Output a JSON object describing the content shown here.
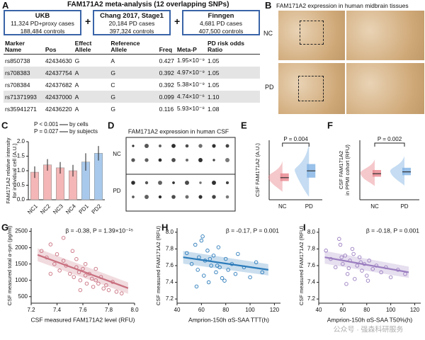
{
  "panel_labels": [
    "A",
    "B",
    "C",
    "D",
    "E",
    "F",
    "G",
    "H",
    "I"
  ],
  "panel_a": {
    "title": "FAM171A2 meta-analysis (12 overlapping SNPs)",
    "cohorts": [
      {
        "name": "UKB",
        "lines": [
          "11,324 PD+proxy cases",
          "188,484 controls"
        ]
      },
      {
        "name": "Chang 2017, Stage1",
        "lines": [
          "20,184 PD cases",
          "397,324 controls"
        ]
      },
      {
        "name": "Finngen",
        "lines": [
          "4,681 PD cases",
          "407,500 controls"
        ]
      }
    ],
    "plus_signs": [
      "+",
      "+"
    ],
    "table": {
      "header": [
        "Marker Name",
        "Pos",
        "Effect Allele",
        "Reference Allele",
        "Freq",
        "Meta-P",
        "PD risk odds Ratio"
      ],
      "rows": [
        [
          "rs850738",
          "42434630",
          "G",
          "A",
          "0.427",
          "1.95×10⁻⁹",
          "1.05"
        ],
        [
          "rs708383",
          "42437754",
          "A",
          "G",
          "0.392",
          "4.97×10⁻⁹",
          "1.05"
        ],
        [
          "rs708384",
          "42437682",
          "A",
          "C",
          "0.392",
          "5.38×10⁻⁹",
          "1.05"
        ],
        [
          "rs71371993",
          "42437000",
          "A",
          "G",
          "0.099",
          "4.74×10⁻⁶",
          "1.10"
        ],
        [
          "rs35941271",
          "42436220",
          "A",
          "G",
          "0.116",
          "5.93×10⁻⁸",
          "1.08"
        ]
      ]
    }
  },
  "panel_b": {
    "title": "FAM171A2 expression in human midbrain tissues",
    "groups": [
      "NC",
      "PD"
    ]
  },
  "panel_d": {
    "title": "FAM171A2 expression in human CSF",
    "groups": [
      "NC",
      "PD"
    ]
  },
  "watermark": "公众号 · 强森科研服务",
  "chart_data": [
    {
      "type": "bar",
      "ylabel": [
        "FAM171A2 relative intensity",
        "for individual cell (A.U.)"
      ],
      "annotations": [
        "P < 0.001",
        "by cells",
        "P = 0.027",
        "by subjects"
      ],
      "categories": [
        "NC1",
        "NC2",
        "NC3",
        "NC4",
        "PD1",
        "PD2"
      ],
      "values": [
        0.95,
        1.2,
        1.1,
        1.0,
        1.3,
        1.6
      ],
      "errors": [
        0.2,
        0.2,
        0.2,
        0.2,
        0.3,
        0.25
      ],
      "colors": [
        "#f4b6b6",
        "#f4b6b6",
        "#f4b6b6",
        "#f4b6b6",
        "#a9c9ec",
        "#a9c9ec"
      ],
      "ylim": [
        0,
        2
      ],
      "yticks": [
        {
          "value": 0,
          "label": "0.0"
        },
        0.5,
        {
          "value": 1,
          "label": "1.0"
        },
        1.5,
        {
          "value": 2,
          "label": "2.0"
        }
      ]
    },
    {
      "type": "box",
      "ylabel": [
        "CSF FAM171A2 (A.U.)"
      ],
      "annotation": "P = 0.004",
      "categories": [
        "NC",
        "PD"
      ],
      "medians": [
        2.6,
        3.4
      ],
      "q1": [
        2.2,
        2.6
      ],
      "q3": [
        3.1,
        4.2
      ],
      "colors": [
        "#e8858c",
        "#7fb2e3"
      ],
      "ylim": [
        0,
        7
      ]
    },
    {
      "type": "box",
      "ylabel": [
        "CSF FAM171A2",
        "in PPMI cohort (RFU)"
      ],
      "annotation": "P = 0.002",
      "categories": [
        "NC",
        "PD"
      ],
      "medians": [
        7.6,
        7.65
      ],
      "q1": [
        7.52,
        7.56
      ],
      "q3": [
        7.7,
        7.76
      ],
      "colors": [
        "#e8858c",
        "#7fb2e3"
      ],
      "ylim": [
        6.9,
        8.5
      ]
    },
    {
      "type": "scatter",
      "ylabel": [
        "CSF measured total α-syn (pg/ml)"
      ],
      "xlabel": "CSF measured FAM171A2 level (RFU)",
      "annotation": "β = -0.38, P = 1.39×10⁻¹⁵",
      "color": "#c9707f",
      "x": [
        7.28,
        7.32,
        7.35,
        7.38,
        7.4,
        7.42,
        7.45,
        7.47,
        7.5,
        7.52,
        7.53,
        7.55,
        7.57,
        7.58,
        7.6,
        7.62,
        7.63,
        7.65,
        7.67,
        7.68,
        7.7,
        7.72,
        7.74,
        7.76,
        7.78,
        7.8,
        7.83,
        7.86,
        7.9,
        7.45,
        7.55,
        7.62,
        7.7,
        7.35,
        7.58
      ],
      "y": [
        1900,
        1700,
        2100,
        1500,
        1800,
        1300,
        1600,
        1450,
        1200,
        1900,
        1100,
        1400,
        1250,
        1000,
        1350,
        1150,
        900,
        1200,
        1050,
        800,
        1000,
        900,
        1100,
        750,
        850,
        700,
        950,
        650,
        600,
        2300,
        1650,
        1500,
        1350,
        1200,
        700
      ],
      "fit": {
        "x": [
          7.25,
          7.95
        ],
        "y": [
          1780,
          760
        ]
      },
      "xlim": [
        7.2,
        8.0
      ],
      "xticks": [
        7.2,
        7.4,
        7.6,
        7.8,
        {
          "value": 8,
          "label": "8.0"
        }
      ],
      "ylim": [
        300,
        2600
      ],
      "yticks": [
        500,
        1000,
        1500,
        2000,
        2500
      ]
    },
    {
      "type": "scatter",
      "ylabel": [
        "CSF measured FAM171A2 (RFU)"
      ],
      "xlabel": "Amprion-150h αS-SAA TTT(h)",
      "annotation": "β = -0.17, P = 0.001",
      "color": "#2b7bba",
      "x": [
        48,
        52,
        55,
        57,
        58,
        60,
        62,
        63,
        65,
        66,
        68,
        70,
        72,
        74,
        75,
        77,
        80,
        82,
        85,
        88,
        90,
        95,
        100,
        105,
        110,
        56,
        61,
        67,
        73,
        79
      ],
      "y": [
        7.75,
        7.62,
        7.85,
        7.55,
        7.7,
        7.9,
        7.48,
        7.66,
        7.78,
        7.4,
        7.6,
        7.72,
        7.52,
        7.82,
        7.58,
        7.45,
        7.68,
        7.55,
        7.62,
        7.5,
        7.74,
        7.58,
        7.46,
        7.64,
        7.52,
        7.35,
        7.95,
        7.68,
        7.6,
        7.42
      ],
      "fit": {
        "x": [
          45,
          115
        ],
        "y": [
          7.7,
          7.55
        ]
      },
      "xlim": [
        40,
        125
      ],
      "xticks": [
        40,
        60,
        80,
        100,
        120
      ],
      "ylim": [
        7.15,
        8.05
      ],
      "yticks": [
        7.2,
        7.4,
        7.6,
        7.8,
        {
          "value": 8,
          "label": "8.0"
        }
      ]
    },
    {
      "type": "scatter",
      "ylabel": [
        "CSF measured FAM171A2 (RFU)"
      ],
      "xlabel": "Amprion-150h αS-SAA T50%(h)",
      "annotation": "β = -0.18, P = 0.001",
      "color": "#9b7ec0",
      "x": [
        46,
        50,
        54,
        58,
        60,
        62,
        64,
        66,
        68,
        70,
        72,
        74,
        76,
        78,
        80,
        82,
        85,
        88,
        92,
        96,
        100,
        106,
        112,
        57,
        63,
        69,
        75,
        81,
        59,
        65
      ],
      "y": [
        7.78,
        7.68,
        7.58,
        7.85,
        7.62,
        7.72,
        7.5,
        7.66,
        7.8,
        7.44,
        7.6,
        7.7,
        7.54,
        7.62,
        7.48,
        7.66,
        7.56,
        7.6,
        7.52,
        7.58,
        7.46,
        7.55,
        7.5,
        7.92,
        7.38,
        7.74,
        7.64,
        7.42,
        7.7,
        7.57
      ],
      "fit": {
        "x": [
          45,
          115
        ],
        "y": [
          7.7,
          7.52
        ]
      },
      "xlim": [
        40,
        125
      ],
      "xticks": [
        40,
        60,
        80,
        100,
        120
      ],
      "ylim": [
        7.15,
        8.05
      ],
      "yticks": [
        7.2,
        7.4,
        7.6,
        7.8,
        {
          "value": 8,
          "label": "8.0"
        }
      ]
    }
  ]
}
